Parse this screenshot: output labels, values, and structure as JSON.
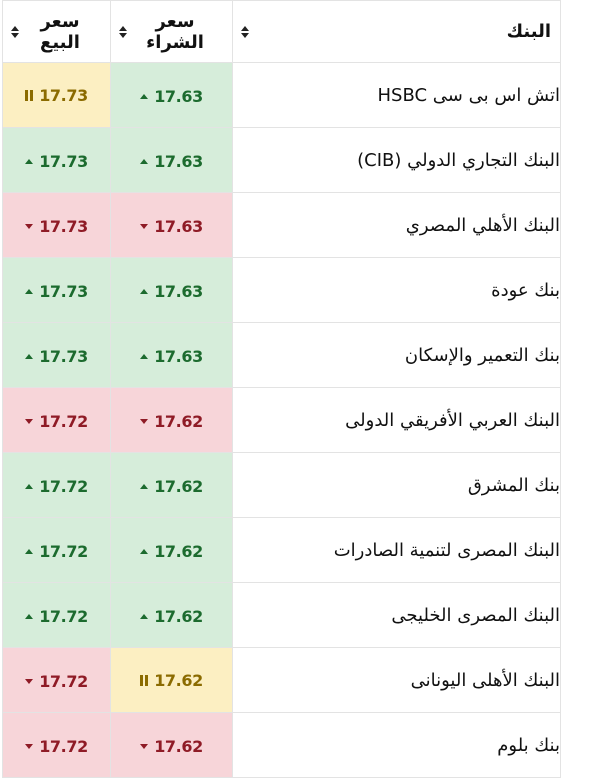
{
  "header": {
    "bank_label": "البنك",
    "buy_label": "سعر الشراء",
    "sell_label": "سعر البيع"
  },
  "rows": [
    {
      "bank": "اتش اس بى سى HSBC",
      "buy": "17.63",
      "buy_trend": "up",
      "sell": "17.73",
      "sell_trend": "same"
    },
    {
      "bank": "البنك التجاري الدولي (CIB)",
      "buy": "17.63",
      "buy_trend": "up",
      "sell": "17.73",
      "sell_trend": "up"
    },
    {
      "bank": "البنك الأهلي المصري",
      "buy": "17.63",
      "buy_trend": "down",
      "sell": "17.73",
      "sell_trend": "down"
    },
    {
      "bank": "بنك عودة",
      "buy": "17.63",
      "buy_trend": "up",
      "sell": "17.73",
      "sell_trend": "up"
    },
    {
      "bank": "بنك التعمير والإسكان",
      "buy": "17.63",
      "buy_trend": "up",
      "sell": "17.73",
      "sell_trend": "up"
    },
    {
      "bank": "البنك العربي الأفريقي الدولى",
      "buy": "17.62",
      "buy_trend": "down",
      "sell": "17.72",
      "sell_trend": "down"
    },
    {
      "bank": "بنك المشرق",
      "buy": "17.62",
      "buy_trend": "up",
      "sell": "17.72",
      "sell_trend": "up"
    },
    {
      "bank": "البنك المصرى لتنمية الصادرات",
      "buy": "17.62",
      "buy_trend": "up",
      "sell": "17.72",
      "sell_trend": "up"
    },
    {
      "bank": "البنك المصرى الخليجى",
      "buy": "17.62",
      "buy_trend": "up",
      "sell": "17.72",
      "sell_trend": "up"
    },
    {
      "bank": "البنك الأهلى اليونانى",
      "buy": "17.62",
      "buy_trend": "same",
      "sell": "17.72",
      "sell_trend": "down"
    },
    {
      "bank": "بنك بلوم",
      "buy": "17.62",
      "buy_trend": "down",
      "sell": "17.72",
      "sell_trend": "down"
    }
  ],
  "colors": {
    "up_bg": "#d6edda",
    "up_fg": "#1c6b2e",
    "down_bg": "#f7d5d9",
    "down_fg": "#8f1b26",
    "same_bg": "#fcefc2",
    "same_fg": "#8b6b00"
  },
  "icons": {
    "up": "caret-up-icon",
    "down": "caret-down-icon",
    "same": "pause-bars-icon",
    "sort": "sort-icon"
  }
}
